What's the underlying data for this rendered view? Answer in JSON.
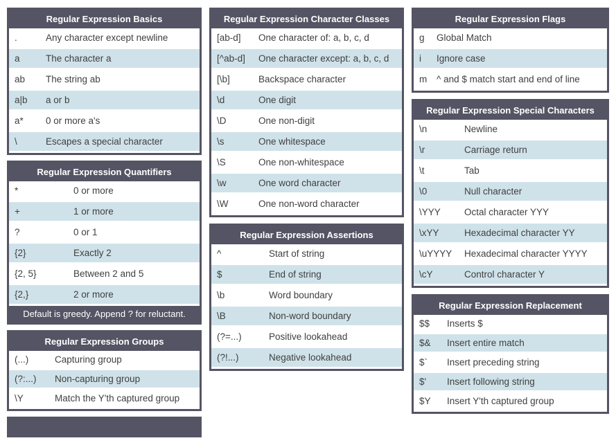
{
  "colors": {
    "header_bg": "#555464",
    "header_text": "#ffffff",
    "row_alt_bg": "#cfe2e9",
    "row_bg": "#ffffff",
    "text": "#3f3f3f",
    "page_bg": "#ffffff"
  },
  "tables": {
    "basics": {
      "title": "Regular Expression Basics",
      "rows": [
        {
          "code": ".",
          "desc": "Any character except newline"
        },
        {
          "code": "a",
          "desc": "The character a"
        },
        {
          "code": "ab",
          "desc": "The string ab"
        },
        {
          "code": "a|b",
          "desc": "a or b"
        },
        {
          "code": "a*",
          "desc": "0 or more a's"
        },
        {
          "code": "\\",
          "desc": "Escapes a special character"
        }
      ]
    },
    "quantifiers": {
      "title": "Regular Expression Quantifiers",
      "rows": [
        {
          "code": "*",
          "desc": "0 or more"
        },
        {
          "code": "+",
          "desc": "1 or more"
        },
        {
          "code": "?",
          "desc": "0 or 1"
        },
        {
          "code": "{2}",
          "desc": "Exactly 2"
        },
        {
          "code": "{2, 5}",
          "desc": "Between 2 and 5"
        },
        {
          "code": "{2,}",
          "desc": "2 or more"
        }
      ],
      "note": "Default is greedy. Append ? for reluctant."
    },
    "groups": {
      "title": "Regular Expression Groups",
      "rows": [
        {
          "code": "(...)",
          "desc": "Capturing group"
        },
        {
          "code": "(?:...)",
          "desc": "Non-capturing group"
        },
        {
          "code": "\\Y",
          "desc": "Match the Y'th captured group"
        }
      ]
    },
    "character_classes": {
      "title": "Regular Expression Character Classes",
      "rows": [
        {
          "code": "[ab-d]",
          "desc": "One character of: a, b, c, d"
        },
        {
          "code": "[^ab-d]",
          "desc": "One character except: a, b, c, d"
        },
        {
          "code": "[\\b]",
          "desc": "Backspace character"
        },
        {
          "code": "\\d",
          "desc": "One digit"
        },
        {
          "code": "\\D",
          "desc": "One non-digit"
        },
        {
          "code": "\\s",
          "desc": "One whitespace"
        },
        {
          "code": "\\S",
          "desc": "One non-whitespace"
        },
        {
          "code": "\\w",
          "desc": "One word character"
        },
        {
          "code": "\\W",
          "desc": "One non-word character"
        }
      ]
    },
    "assertions": {
      "title": "Regular Expression Assertions",
      "rows": [
        {
          "code": "^",
          "desc": "Start of string"
        },
        {
          "code": "$",
          "desc": "End of string"
        },
        {
          "code": "\\b",
          "desc": "Word boundary"
        },
        {
          "code": "\\B",
          "desc": "Non-word boundary"
        },
        {
          "code": "(?=...)",
          "desc": "Positive lookahead"
        },
        {
          "code": "(?!...)",
          "desc": "Negative lookahead"
        }
      ]
    },
    "flags": {
      "title": "Regular Expression Flags",
      "rows": [
        {
          "code": "g",
          "desc": "Global Match"
        },
        {
          "code": "i",
          "desc": "Ignore case"
        },
        {
          "code": "m",
          "desc": "^ and $ match start and end of line"
        }
      ]
    },
    "special_characters": {
      "title": "Regular Expression Special Characters",
      "rows": [
        {
          "code": "\\n",
          "desc": "Newline"
        },
        {
          "code": "\\r",
          "desc": "Carriage return"
        },
        {
          "code": "\\t",
          "desc": "Tab"
        },
        {
          "code": "\\0",
          "desc": "Null character"
        },
        {
          "code": "\\YYY",
          "desc": "Octal character YYY"
        },
        {
          "code": "\\xYY",
          "desc": "Hexadecimal character YY"
        },
        {
          "code": "\\uYYYY",
          "desc": "Hexadecimal character YYYY"
        },
        {
          "code": "\\cY",
          "desc": "Control character Y"
        }
      ]
    },
    "replacement": {
      "title": "Regular Expression Replacement",
      "rows": [
        {
          "code": "$$",
          "desc": "Inserts $"
        },
        {
          "code": "$&",
          "desc": "Insert entire match"
        },
        {
          "code": "$`",
          "desc": "Insert preceding string"
        },
        {
          "code": "$'",
          "desc": "Insert following string"
        },
        {
          "code": "$Y",
          "desc": "Insert Y'th captured group"
        }
      ]
    },
    "cutoff": {
      "title": ""
    }
  }
}
